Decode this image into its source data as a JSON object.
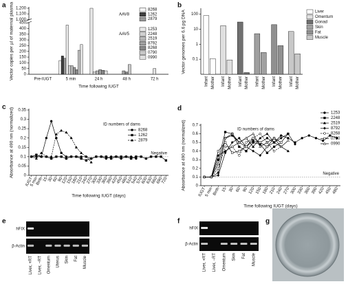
{
  "chart_data": [
    {
      "type": "grouped-bar",
      "label": "a",
      "y_label": "Vector copies per µl of maternal plasma",
      "x_label": "Time following IUGT",
      "categories": [
        "Pre-IUGT",
        "5 min",
        "24 h",
        "48 h",
        "72 h"
      ],
      "ylim": [
        0,
        1200
      ],
      "axis_break": [
        450,
        1000
      ],
      "yticks": [
        0,
        50,
        100,
        150,
        200,
        250,
        300,
        350,
        400,
        450,
        {
          "value": 1000,
          "label": "1,000"
        },
        {
          "value": 1100,
          "label": "1,100"
        },
        {
          "value": 1200,
          "label": "1,200"
        }
      ],
      "groups": [
        {
          "name": "AAV8",
          "series": [
            {
              "name": "8268",
              "color": "#f4f4f4",
              "values": [
                null,
                120,
                null,
                null,
                null
              ]
            },
            {
              "name": "1262",
              "color": "#404040",
              "values": [
                null,
                160,
                null,
                null,
                null
              ]
            },
            {
              "name": "2879",
              "color": "#9a9a9a",
              "values": [
                null,
                140,
                null,
                null,
                null
              ]
            }
          ]
        },
        {
          "name": "AAV5",
          "series": [
            {
              "name": "1253",
              "color": "#e8e8e8",
              "values": [
                null,
                430,
                1200,
                null,
                null
              ]
            },
            {
              "name": "2248",
              "color": "#d0d0d0",
              "values": [
                null,
                75,
                20,
                null,
                null
              ]
            },
            {
              "name": "2519",
              "color": "#b8b8b8",
              "values": [
                null,
                75,
                30,
                null,
                null
              ]
            },
            {
              "name": "8792",
              "color": "#a0a0a0",
              "values": [
                null,
                60,
                40,
                30,
                null
              ]
            },
            {
              "name": "8268",
              "color": "#888888",
              "values": [
                null,
                40,
                35,
                20,
                null
              ]
            },
            {
              "name": "0790",
              "color": "#c8c8c8",
              "values": [
                null,
                210,
                null,
                85,
                null
              ]
            },
            {
              "name": "0990",
              "color": "#e0e0e0",
              "values": [
                null,
                260,
                30,
                null,
                50
              ]
            }
          ]
        }
      ]
    },
    {
      "type": "paired-bar",
      "label": "b",
      "y_label": "Vector genomes per 6.6 pg DNA",
      "log_scale": true,
      "categories": [
        "Infant",
        "Mother"
      ],
      "ylim": [
        0.01,
        200
      ],
      "yticks": [
        0.1,
        1,
        10,
        100
      ],
      "series": [
        {
          "name": "Liver",
          "color": "#ffffff",
          "values": [
            80,
            0.11
          ]
        },
        {
          "name": "Omentum",
          "color": "#e0e0e0",
          "values": [
            17,
            0.09
          ]
        },
        {
          "name": "Gonad",
          "color": "#707070",
          "values": [
            30,
            0.013
          ]
        },
        {
          "name": "Skin",
          "color": "#a0a0a0",
          "values": [
            5,
            0.28
          ]
        },
        {
          "name": "Fat",
          "color": "#909090",
          "values": [
            20,
            0.8
          ]
        },
        {
          "name": "Muscle",
          "color": "#c8c8c8",
          "values": [
            7,
            0.23
          ]
        }
      ]
    },
    {
      "type": "line",
      "label": "c",
      "y_label": "Absorbance at 490 nm (normalized)",
      "x_label": "Time following IUGT (days)",
      "legend_title": "ID numbers of dams",
      "categories": [
        "IUGT",
        "5 min",
        "Birth",
        "15",
        "30",
        "60",
        "90",
        "120",
        "150",
        "180",
        "210",
        "240",
        "270",
        "300",
        "330",
        "360",
        "390",
        "420",
        "450",
        "480",
        "510",
        "540",
        "570",
        "600",
        "630",
        "660",
        "690",
        "720"
      ],
      "ylim": [
        0,
        0.35
      ],
      "yticks": [
        0,
        0.05,
        0.1,
        0.15,
        0.2,
        0.25,
        0.3,
        0.35
      ],
      "reference_line": {
        "value": 0.1,
        "label": "Negative"
      },
      "series": [
        {
          "name": "8268",
          "color": "#000000",
          "marker": "circle",
          "dashed": false,
          "values": [
            0.1,
            0.1,
            0.1,
            0.2,
            0.29,
            0.2,
            0.12,
            0.1,
            0.1,
            0.1,
            0.1,
            0.1,
            0.09,
            0.1,
            0.1,
            0.09,
            0.1,
            0.1,
            0.09,
            0.1,
            0.1,
            0.09,
            null,
            null,
            null,
            null,
            null,
            null
          ]
        },
        {
          "name": "1262",
          "color": "#000000",
          "marker": "square",
          "dashed": false,
          "values": [
            0.1,
            0.11,
            0.1,
            0.1,
            0.09,
            0.1,
            0.1,
            0.09,
            0.1,
            0.1,
            0.09,
            0.08,
            0.09,
            0.1,
            0.1,
            0.1,
            0.09,
            0.1,
            0.1,
            0.1,
            0.09,
            0.1,
            0.1,
            0.09,
            0.1,
            0.1,
            0.1,
            0.08
          ]
        },
        {
          "name": "2879",
          "color": "#000000",
          "marker": "triangle",
          "dashed": true,
          "values": [
            0.1,
            0.09,
            0.12,
            0.1,
            0.1,
            0.22,
            0.24,
            0.23,
            0.2,
            0.15,
            0.12,
            0.1,
            0.07,
            null,
            null,
            null,
            null,
            null,
            null,
            null,
            null,
            null,
            null,
            null,
            null,
            null,
            null,
            null
          ]
        }
      ]
    },
    {
      "type": "line",
      "label": "d",
      "y_label": "Absorbance at 490 nm (normalized)",
      "x_label": "Time following IUGT (days)",
      "legend_title": "ID numbers of dams",
      "categories": [
        "IUGT",
        "5 min",
        "Birth",
        "15",
        "30",
        "60",
        "90",
        "120",
        "150",
        "180",
        "210",
        "240",
        "270",
        "300",
        "330",
        "360",
        "390",
        "420",
        "450",
        "480"
      ],
      "ylim": [
        0,
        0.7
      ],
      "yticks": [
        0,
        0.1,
        0.2,
        0.3,
        0.4,
        0.5,
        0.6,
        0.7
      ],
      "reference_line": {
        "value": 0.1,
        "label": "Negative"
      },
      "series": [
        {
          "name": "1253",
          "color": "#000000",
          "marker": "circle",
          "dashed": false,
          "values": [
            0.1,
            0.1,
            0.15,
            0.55,
            0.58,
            0.5,
            0.45,
            0.52,
            0.5,
            0.55,
            0.5,
            0.58,
            0.55,
            0.5,
            0.55,
            0.58,
            0.55,
            0.52,
            0.58,
            0.55
          ]
        },
        {
          "name": "2248",
          "color": "#000000",
          "marker": "square",
          "dashed": false,
          "values": [
            0.1,
            0.1,
            0.3,
            0.62,
            0.6,
            0.45,
            0.4,
            0.5,
            0.48,
            0.38,
            0.45,
            0.5,
            0.6,
            null,
            null,
            null,
            null,
            null,
            null,
            null
          ]
        },
        {
          "name": "2519",
          "color": "#000000",
          "marker": "triangle",
          "dashed": false,
          "values": [
            0.1,
            0.1,
            0.35,
            0.4,
            0.45,
            0.5,
            0.55,
            0.45,
            0.55,
            0.6,
            0.5,
            0.45,
            0.4,
            null,
            null,
            null,
            null,
            null,
            null,
            null
          ]
        },
        {
          "name": "8792",
          "color": "#000000",
          "marker": "diamond",
          "dashed": false,
          "values": [
            0.1,
            0.1,
            0.12,
            0.38,
            0.5,
            0.55,
            0.45,
            0.4,
            0.35,
            0.45,
            0.5,
            0.55,
            0.6,
            0.48,
            null,
            null,
            null,
            null,
            null,
            null
          ]
        },
        {
          "name": "8268",
          "color": "#000000",
          "marker": "open-circle",
          "dashed": true,
          "values": [
            0.1,
            0.1,
            0.2,
            0.45,
            0.45,
            0.35,
            0.5,
            0.55,
            0.6,
            0.5,
            0.4,
            0.45,
            null,
            null,
            null,
            null,
            null,
            null,
            null,
            null
          ]
        },
        {
          "name": "0790",
          "color": "#000000",
          "marker": "open-square",
          "dashed": false,
          "values": [
            0.1,
            0.1,
            0.4,
            0.5,
            0.38,
            0.4,
            0.45,
            0.55,
            0.5,
            0.45,
            0.55,
            0.5,
            null,
            null,
            null,
            null,
            null,
            null,
            null,
            null
          ]
        },
        {
          "name": "0990",
          "color": "#000000",
          "marker": "open-triangle",
          "dashed": false,
          "values": [
            0.1,
            0.1,
            0.25,
            0.55,
            0.6,
            0.5,
            0.55,
            0.6,
            0.45,
            0.5,
            0.55,
            0.45,
            0.52,
            null,
            null,
            null,
            null,
            null,
            null,
            null
          ]
        }
      ]
    }
  ],
  "gels": [
    {
      "label": "e",
      "rows": [
        "hFIX",
        "β-Actin"
      ],
      "lanes": [
        "Liver, +RT",
        "Liver, −RT",
        "Omentum",
        "Uterus",
        "Skin",
        "Fat",
        "Muscle"
      ]
    },
    {
      "label": "f",
      "rows": [
        "hFIX",
        "β-Actin"
      ],
      "lanes": [
        "Liver, +RT",
        "Liver, −RT",
        "Omentum",
        "Skin",
        "Fat",
        "Muscle"
      ]
    }
  ],
  "image": {
    "label": "g"
  }
}
